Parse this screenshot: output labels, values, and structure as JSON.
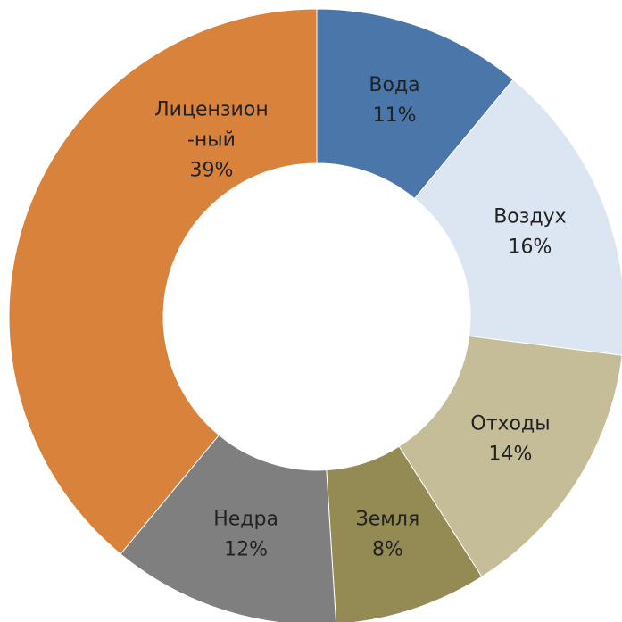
{
  "chart_data": {
    "type": "donut",
    "categories": [
      "Вода",
      "Воздух",
      "Отходы",
      "Земля",
      "Недра",
      "Лицензион\n-ный"
    ],
    "values": [
      11,
      16,
      14,
      8,
      12,
      39
    ],
    "value_labels": [
      "11%",
      "16%",
      "14%",
      "8%",
      "12%",
      "39%"
    ],
    "colors": [
      "#4a76aa",
      "#dce6f2",
      "#c4bd97",
      "#948a54",
      "#7f7f7f",
      "#d9823b"
    ]
  }
}
